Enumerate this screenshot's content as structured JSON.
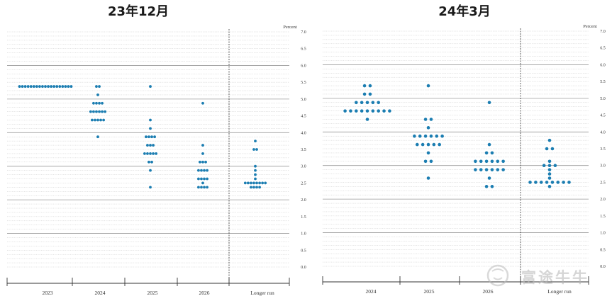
{
  "chart_data": [
    {
      "type": "scatter",
      "title": "23年12月",
      "ylabel": "Percent",
      "ylim": [
        0,
        7
      ],
      "yticks": [
        "0.0",
        "0.5",
        "1.0",
        "1.5",
        "2.0",
        "2.5",
        "3.0",
        "3.5",
        "4.0",
        "4.5",
        "5.0",
        "5.5",
        "6.0",
        "6.5",
        "7.0"
      ],
      "categories": [
        "2023",
        "2024",
        "2025",
        "2026",
        "Longer run"
      ],
      "grid": true,
      "dots": [
        {
          "category": "2023",
          "points": [
            {
              "rate": 5.375,
              "count": 19
            }
          ]
        },
        {
          "category": "2024",
          "points": [
            {
              "rate": 5.375,
              "count": 2
            },
            {
              "rate": 5.125,
              "count": 1
            },
            {
              "rate": 4.875,
              "count": 4
            },
            {
              "rate": 4.625,
              "count": 6
            },
            {
              "rate": 4.375,
              "count": 5
            },
            {
              "rate": 3.875,
              "count": 1
            }
          ]
        },
        {
          "category": "2025",
          "points": [
            {
              "rate": 5.375,
              "count": 1
            },
            {
              "rate": 4.375,
              "count": 1
            },
            {
              "rate": 4.125,
              "count": 1
            },
            {
              "rate": 3.875,
              "count": 4
            },
            {
              "rate": 3.625,
              "count": 3
            },
            {
              "rate": 3.375,
              "count": 5
            },
            {
              "rate": 3.125,
              "count": 2
            },
            {
              "rate": 2.875,
              "count": 1
            },
            {
              "rate": 2.375,
              "count": 1
            }
          ]
        },
        {
          "category": "2026",
          "points": [
            {
              "rate": 4.875,
              "count": 1
            },
            {
              "rate": 3.625,
              "count": 1
            },
            {
              "rate": 3.375,
              "count": 1
            },
            {
              "rate": 3.125,
              "count": 3
            },
            {
              "rate": 2.875,
              "count": 4
            },
            {
              "rate": 2.625,
              "count": 4
            },
            {
              "rate": 2.5,
              "count": 1
            },
            {
              "rate": 2.375,
              "count": 4
            }
          ]
        },
        {
          "category": "Longer run",
          "points": [
            {
              "rate": 3.75,
              "count": 1
            },
            {
              "rate": 3.5,
              "count": 2
            },
            {
              "rate": 3.0,
              "count": 1
            },
            {
              "rate": 2.875,
              "count": 1
            },
            {
              "rate": 2.75,
              "count": 1
            },
            {
              "rate": 2.625,
              "count": 1
            },
            {
              "rate": 2.5,
              "count": 8
            },
            {
              "rate": 2.375,
              "count": 4
            }
          ]
        }
      ]
    },
    {
      "type": "scatter",
      "title": "24年3月",
      "ylabel": "Percent",
      "ylim": [
        0,
        7
      ],
      "yticks": [
        "0.0",
        "0.5",
        "1.0",
        "1.5",
        "2.0",
        "2.5",
        "3.0",
        "3.5",
        "4.0",
        "4.5",
        "5.0",
        "5.5",
        "6.0",
        "6.5",
        "7.0"
      ],
      "categories": [
        "2024",
        "2025",
        "2026",
        "Longer run"
      ],
      "grid": true,
      "dots": [
        {
          "category": "2024",
          "points": [
            {
              "rate": 5.375,
              "count": 2
            },
            {
              "rate": 5.125,
              "count": 2
            },
            {
              "rate": 4.875,
              "count": 5
            },
            {
              "rate": 4.625,
              "count": 9
            },
            {
              "rate": 4.375,
              "count": 1
            }
          ]
        },
        {
          "category": "2025",
          "points": [
            {
              "rate": 5.375,
              "count": 1
            },
            {
              "rate": 4.375,
              "count": 2
            },
            {
              "rate": 4.125,
              "count": 1
            },
            {
              "rate": 3.875,
              "count": 6
            },
            {
              "rate": 3.625,
              "count": 5
            },
            {
              "rate": 3.375,
              "count": 1
            },
            {
              "rate": 3.125,
              "count": 2
            },
            {
              "rate": 2.625,
              "count": 1
            }
          ]
        },
        {
          "category": "2026",
          "points": [
            {
              "rate": 4.875,
              "count": 1
            },
            {
              "rate": 3.625,
              "count": 1
            },
            {
              "rate": 3.375,
              "count": 2
            },
            {
              "rate": 3.125,
              "count": 6
            },
            {
              "rate": 2.875,
              "count": 6
            },
            {
              "rate": 2.625,
              "count": 1
            },
            {
              "rate": 2.375,
              "count": 2
            }
          ]
        },
        {
          "category": "Longer run",
          "points": [
            {
              "rate": 3.75,
              "count": 1
            },
            {
              "rate": 3.5,
              "count": 2
            },
            {
              "rate": 3.125,
              "count": 1
            },
            {
              "rate": 3.0,
              "count": 3
            },
            {
              "rate": 2.875,
              "count": 1
            },
            {
              "rate": 2.75,
              "count": 1
            },
            {
              "rate": 2.625,
              "count": 1
            },
            {
              "rate": 2.5,
              "count": 8
            },
            {
              "rate": 2.375,
              "count": 1
            }
          ]
        }
      ]
    }
  ],
  "watermark": {
    "text": "富途牛牛",
    "logo_icon": "futu-bull-icon"
  },
  "colors": {
    "dot": "#1b7db1",
    "grid": "#c8c8c8",
    "grid_major": "#9a9a9a",
    "axis": "#333333"
  }
}
